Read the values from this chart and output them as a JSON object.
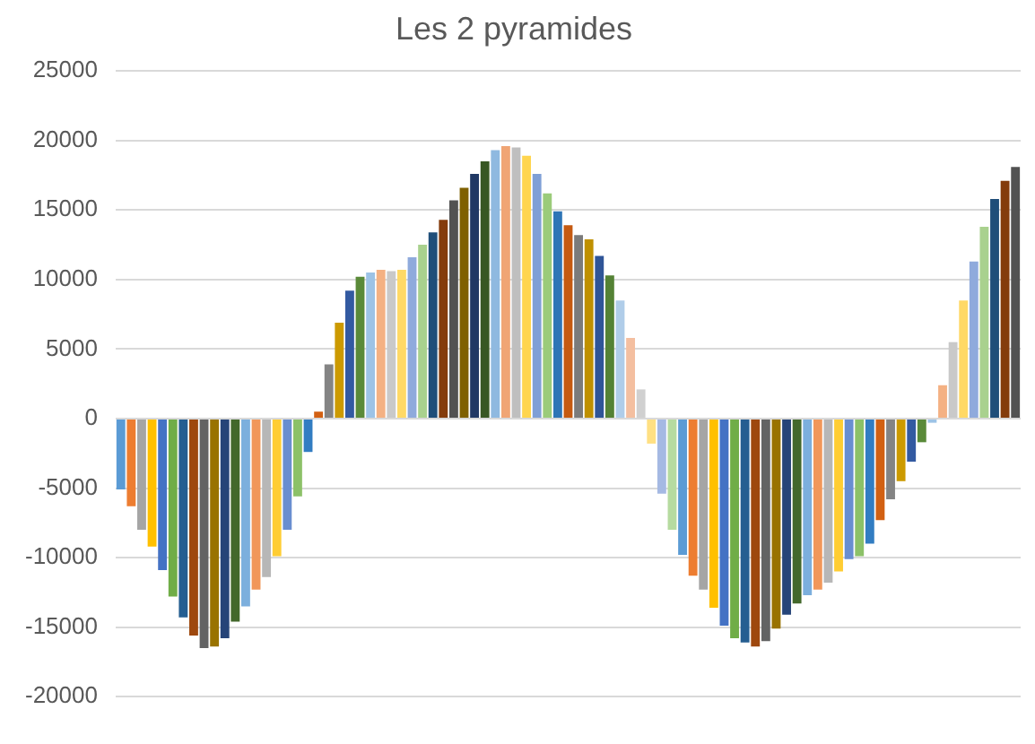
{
  "chart_data": {
    "type": "bar",
    "title": "Les 2 pyramides",
    "categories": [
      null,
      null,
      null,
      null,
      null,
      null,
      null,
      null,
      null,
      null,
      null,
      null,
      null,
      null,
      null,
      null,
      null,
      null,
      null,
      null,
      null,
      null,
      null,
      null,
      null,
      null,
      null,
      null,
      null,
      null,
      null,
      null,
      null,
      null,
      null,
      null,
      null,
      null,
      null,
      null,
      null,
      null,
      null,
      null,
      null,
      null,
      null,
      null,
      null,
      null,
      null,
      null,
      null,
      null,
      null,
      null,
      null,
      null,
      null,
      null,
      null,
      null,
      null,
      null,
      null,
      null,
      null,
      null,
      null,
      null,
      null,
      null,
      null,
      null,
      null,
      null,
      null,
      null,
      null,
      null,
      null,
      null,
      null,
      null,
      null,
      null,
      null
    ],
    "values": [
      -5100,
      -6300,
      -8000,
      -9200,
      -10900,
      -12800,
      -14300,
      -15600,
      -16500,
      -16400,
      -15800,
      -14600,
      -13500,
      -12300,
      -11400,
      -9900,
      -8000,
      -5600,
      -2400,
      500,
      3900,
      6900,
      9200,
      10200,
      10500,
      10700,
      10600,
      10700,
      11600,
      12500,
      13400,
      14300,
      15700,
      16600,
      17600,
      18500,
      19300,
      19600,
      19500,
      18900,
      17600,
      16200,
      14900,
      13900,
      13200,
      12900,
      11700,
      10300,
      8500,
      5800,
      2100,
      -1800,
      -5400,
      -8000,
      -9800,
      -11300,
      -12300,
      -13600,
      -14900,
      -15800,
      -16100,
      -16400,
      -16000,
      -15100,
      -14100,
      -13300,
      -12700,
      -12300,
      -11800,
      -11000,
      -10100,
      -9900,
      -9000,
      -7300,
      -5800,
      -4500,
      -3100,
      -1700,
      -300,
      2400,
      5500,
      8500,
      11300,
      13800,
      15800,
      17100,
      18100
    ],
    "colors": [
      "#5b9bd5",
      "#ed7d31",
      "#a5a5a5",
      "#ffc000",
      "#4472c4",
      "#70ad47",
      "#255e91",
      "#9e480e",
      "#636363",
      "#997300",
      "#264478",
      "#43682b",
      "#7cafdd",
      "#f1975a",
      "#b7b7b7",
      "#ffcd33",
      "#698ed0",
      "#8cc168",
      "#327dc2",
      "#d26012",
      "#848484",
      "#cc9a00",
      "#335aa1",
      "#5a8a39",
      "#9dc3e6",
      "#f4b183",
      "#c9c9c9",
      "#ffd966",
      "#8faadc",
      "#a9d18e",
      "#1f4e79",
      "#843c0c",
      "#525252",
      "#7f6000",
      "#203864",
      "#385723",
      "#8fb9e0",
      "#f0a574",
      "#bfbfbf",
      "#ffd54f",
      "#7f9fd6",
      "#9bcb7a",
      "#2e75b6",
      "#c55a11",
      "#7b7b7b",
      "#bf9000",
      "#2f5597",
      "#548235",
      "#b0cde9",
      "#f4bfa0",
      "#d0d0d0",
      "#ffe083",
      "#a5b9e3",
      "#b6dba0",
      "#5b9bd5",
      "#ed7d31",
      "#a5a5a5",
      "#ffc000",
      "#4472c4",
      "#70ad47",
      "#255e91",
      "#9e480e",
      "#636363",
      "#997300",
      "#264478",
      "#43682b",
      "#7cafdd",
      "#f1975a",
      "#b7b7b7",
      "#ffcd33",
      "#698ed0",
      "#8cc168",
      "#327dc2",
      "#d26012",
      "#848484",
      "#cc9a00",
      "#335aa1",
      "#5a8a39",
      "#9dc3e6",
      "#f4b183",
      "#c9c9c9",
      "#ffd966",
      "#8faadc",
      "#a9d18e",
      "#1f4e79",
      "#843c0c",
      "#525252"
    ],
    "ylim": [
      -20000,
      25000
    ],
    "yticks": [
      -20000,
      -15000,
      -10000,
      -5000,
      0,
      5000,
      10000,
      15000,
      20000,
      25000
    ],
    "grid": "y",
    "legend": false
  }
}
